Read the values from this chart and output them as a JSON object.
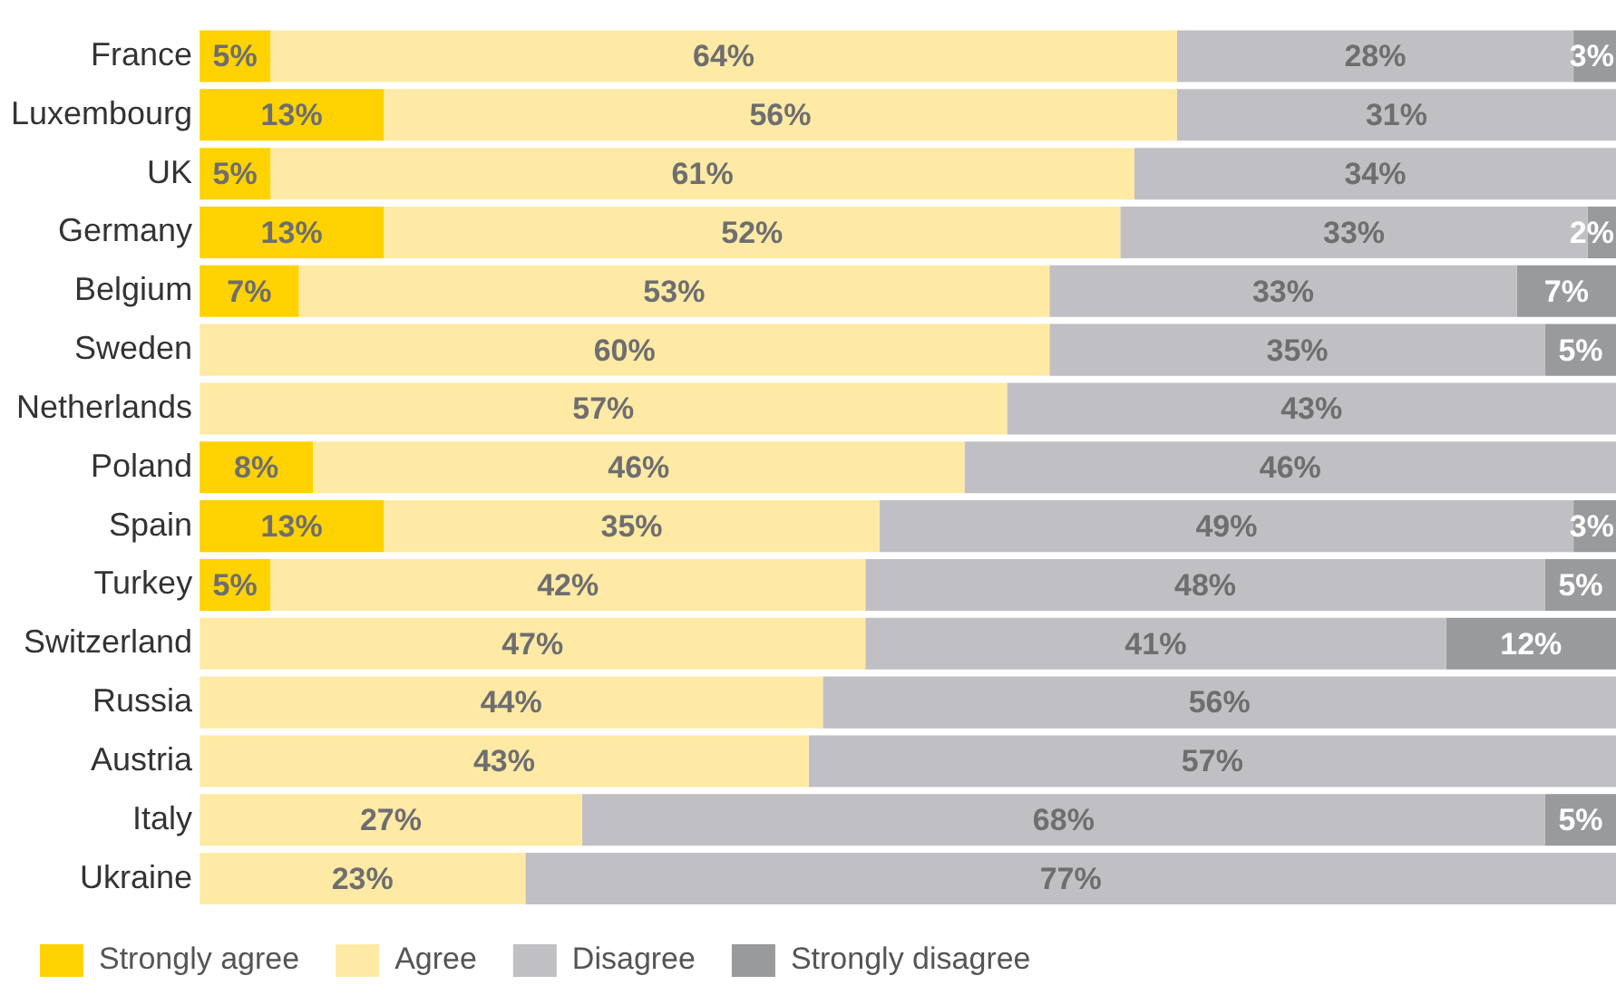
{
  "chart_data": {
    "type": "bar",
    "orientation": "horizontal",
    "stacked": true,
    "legend": "bottom",
    "tick_labels": "y",
    "xlim": [
      0,
      100
    ],
    "categories": [
      "France",
      "Luxembourg",
      "UK",
      "Germany",
      "Belgium",
      "Sweden",
      "Netherlands",
      "Poland",
      "Spain",
      "Turkey",
      "Switzerland",
      "Russia",
      "Austria",
      "Italy",
      "Ukraine"
    ],
    "series": [
      {
        "name": "Strongly agree",
        "color": "#ffd200",
        "values": [
          5,
          13,
          5,
          13,
          7,
          null,
          null,
          8,
          13,
          5,
          null,
          null,
          null,
          null,
          null
        ],
        "value_labels": [
          "5%",
          "13%",
          "5%",
          "13%",
          "7%",
          null,
          null,
          "8%",
          "13%",
          "5%",
          null,
          null,
          null,
          null,
          null
        ]
      },
      {
        "name": "Agree",
        "color": "#feeaa5",
        "values": [
          64,
          56,
          61,
          52,
          53,
          60,
          57,
          46,
          35,
          42,
          47,
          44,
          43,
          27,
          23
        ],
        "value_labels": [
          "64%",
          "56%",
          "61%",
          "52%",
          "53%",
          "60%",
          "57%",
          "46%",
          "35%",
          "42%",
          "47%",
          "44%",
          "43%",
          "27%",
          "23%"
        ]
      },
      {
        "name": "Disagree",
        "color": "#c0c0c4",
        "values": [
          28,
          31,
          34,
          33,
          33,
          35,
          43,
          46,
          49,
          48,
          41,
          56,
          57,
          68,
          77
        ],
        "value_labels": [
          "28%",
          "31%",
          "34%",
          "33%",
          "33%",
          "35%",
          "43%",
          "46%",
          "49%",
          "48%",
          "41%",
          "56%",
          "57%",
          "68%",
          "77%"
        ]
      },
      {
        "name": "Strongly disagree",
        "color": "#999a9c",
        "values": [
          3,
          null,
          null,
          2,
          7,
          5,
          null,
          null,
          3,
          5,
          12,
          null,
          null,
          5,
          null
        ],
        "value_labels": [
          "3%",
          null,
          null,
          "2%",
          "7%",
          "5%",
          null,
          null,
          "3%",
          "5%",
          "12%",
          null,
          null,
          "5%",
          null
        ]
      }
    ]
  }
}
